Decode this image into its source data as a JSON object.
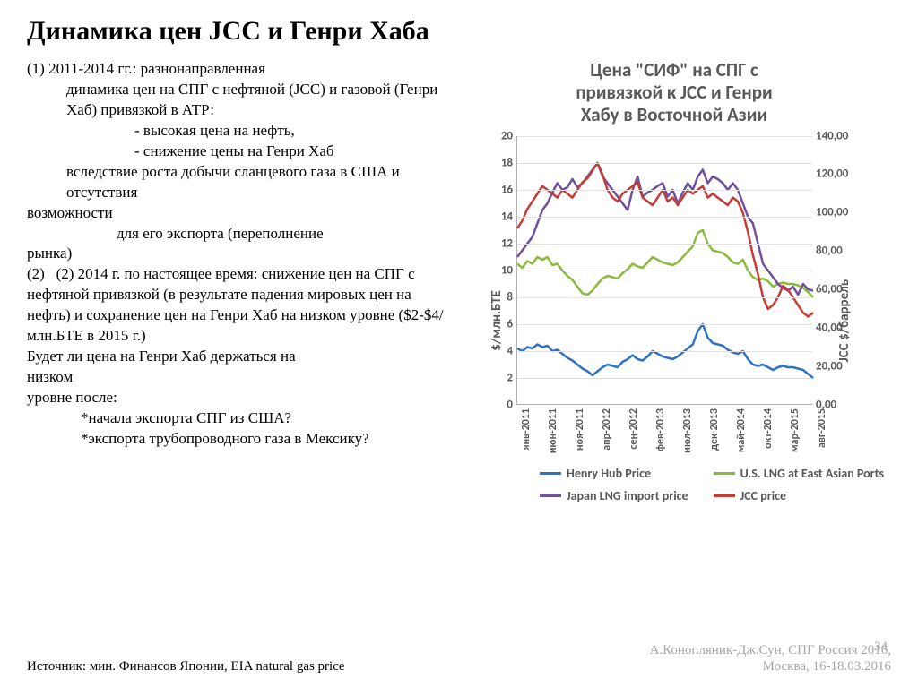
{
  "title": "Динамика цен JCC и Генри Хаба",
  "body": {
    "p1a": "(1)   2011-2014 гг.: разнонаправленная",
    "p1b": "динамика цен на СПГ с нефтяной (JCC) и газовой (Генри Хаб) привязкой в АТР:",
    "b1": "- высокая цена на нефть,",
    "b2": "- снижение цены на Генри Хаб",
    "b3": "вследствие роста добычи сланцевого газа в США и отсутствия",
    "p_vozm": "возможности",
    "p_exp": "для его экспорта (переполнение",
    "p_rynka": "рынка)",
    "p2": "(2)   2014 г. по настоящее время: снижение цен на СПГ с нефтяной привязкой (в результате падения мировых цен на нефть) и сохранение цен на Генри Хаб на низком уровне ($2-$4/млн.БТЕ в 2015 г.)",
    "p3": " Будет ли цена на Генри Хаб держаться на",
    "p3b": "низком",
    "p3c": " уровне после:",
    "q1": "*начала экспорта СПГ из США?",
    "q2": "*экспорта трубопроводного газа в Мексику?"
  },
  "chart": {
    "title_l1": "Цена \"СИФ\" на СПГ с",
    "title_l2": "привязкой к JCC и Генри",
    "title_l3": "Хабу в Восточной Азии",
    "y_left_label": "$/млн.БТЕ",
    "y_right_label": "JCC   $/баррель",
    "y_left": {
      "min": 0,
      "max": 20,
      "step": 2,
      "ticks": [
        "0",
        "2",
        "4",
        "6",
        "8",
        "10",
        "12",
        "14",
        "16",
        "18",
        "20"
      ]
    },
    "y_right": {
      "min": 0,
      "max": 140,
      "step": 20,
      "ticks": [
        "0,00",
        "20,00",
        "40,00",
        "60,00",
        "80,00",
        "100,00",
        "120,00",
        "140,00"
      ]
    },
    "x_labels": [
      "янв-2011",
      "июн-2011",
      "ноя-2011",
      "апр-2012",
      "сен-2012",
      "фев-2013",
      "июл-2013",
      "дек-2013",
      "май-2014",
      "окт-2014",
      "мар-2015",
      "авг-2015"
    ],
    "n_points": 60,
    "series": [
      {
        "name": "Henry Hub Price",
        "color": "#2f72c4",
        "axis": "left",
        "data": [
          4.2,
          4.0,
          4.3,
          4.2,
          4.5,
          4.3,
          4.4,
          4.0,
          4.1,
          3.8,
          3.5,
          3.3,
          3.0,
          2.7,
          2.5,
          2.2,
          2.5,
          2.8,
          3.0,
          2.9,
          2.8,
          3.2,
          3.4,
          3.7,
          3.4,
          3.3,
          3.6,
          4.0,
          3.8,
          3.6,
          3.5,
          3.4,
          3.6,
          3.9,
          4.2,
          4.5,
          5.5,
          6.0,
          5.0,
          4.6,
          4.5,
          4.4,
          4.1,
          3.9,
          3.8,
          4.0,
          3.4,
          3.0,
          2.9,
          3.0,
          2.8,
          2.6,
          2.8,
          2.9,
          2.8,
          2.8,
          2.7,
          2.6,
          2.3,
          2.0
        ]
      },
      {
        "name": "U.S. LNG at East Asian Ports",
        "color": "#8bbb3e",
        "axis": "left",
        "data": [
          10.5,
          10.2,
          10.7,
          10.5,
          11.0,
          10.8,
          11.0,
          10.4,
          10.5,
          10.0,
          9.6,
          9.3,
          8.8,
          8.3,
          8.2,
          8.5,
          9.0,
          9.4,
          9.6,
          9.5,
          9.4,
          9.8,
          10.1,
          10.5,
          10.3,
          10.2,
          10.6,
          11.0,
          10.8,
          10.6,
          10.5,
          10.4,
          10.6,
          11.0,
          11.4,
          11.8,
          12.8,
          13.0,
          12.0,
          11.5,
          11.4,
          11.3,
          11.0,
          10.6,
          10.5,
          10.8,
          10.0,
          9.5,
          9.3,
          9.4,
          9.2,
          8.8,
          9.0,
          9.1,
          9.0,
          9.0,
          8.9,
          8.7,
          8.4,
          8.0
        ]
      },
      {
        "name": "Japan LNG import price",
        "color": "#6f4fa0",
        "axis": "left",
        "data": [
          11.0,
          11.5,
          12.0,
          12.5,
          13.5,
          14.5,
          15.0,
          15.8,
          16.5,
          16.0,
          16.2,
          16.8,
          16.2,
          16.5,
          17.0,
          17.5,
          18.0,
          17.0,
          16.5,
          16.0,
          15.5,
          15.0,
          14.5,
          16.0,
          17.0,
          15.5,
          15.8,
          16.0,
          16.3,
          16.5,
          15.5,
          16.0,
          15.0,
          15.8,
          16.5,
          16.0,
          17.0,
          17.5,
          16.5,
          17.0,
          16.8,
          16.5,
          16.0,
          16.5,
          16.0,
          15.0,
          14.0,
          13.5,
          12.0,
          10.5,
          10.0,
          9.5,
          9.0,
          8.7,
          8.5,
          8.8,
          8.2,
          9.0,
          8.6,
          8.5
        ]
      },
      {
        "name": "JCC price",
        "color": "#c73c36",
        "axis": "right",
        "data": [
          92,
          96,
          102,
          106,
          110,
          114,
          112,
          110,
          108,
          112,
          110,
          108,
          112,
          116,
          118,
          122,
          126,
          120,
          112,
          108,
          106,
          110,
          112,
          114,
          116,
          108,
          106,
          104,
          108,
          112,
          106,
          108,
          104,
          108,
          112,
          110,
          112,
          114,
          108,
          110,
          108,
          106,
          104,
          108,
          106,
          100,
          90,
          78,
          68,
          56,
          50,
          52,
          56,
          62,
          60,
          56,
          52,
          48,
          46,
          48
        ]
      }
    ],
    "legend": [
      {
        "label": "Henry Hub Price",
        "color": "#2f72c4"
      },
      {
        "label": "U.S. LNG at East Asian Ports",
        "color": "#8bbb3e"
      },
      {
        "label": "Japan LNG import price",
        "color": "#6f4fa0"
      },
      {
        "label": "JCC price",
        "color": "#c73c36"
      }
    ],
    "line_width": 2.5,
    "grid_color": "#e2e2e2",
    "axis_color": "#b0b0b0",
    "bg": "#ffffff",
    "title_color": "#595959",
    "tick_color": "#595959",
    "tick_fontsize": 13,
    "xlabel_fontsize": 12,
    "title_fontsize": 21
  },
  "footer": {
    "source": "Источник: мин. Финансов Японии, EIA natural gas price",
    "credit_l1": "А.Конопляник-Дж.Сун, СПГ Россия 2016,",
    "credit_l2": "Москва, 16-18.03.2016",
    "page": "34"
  }
}
